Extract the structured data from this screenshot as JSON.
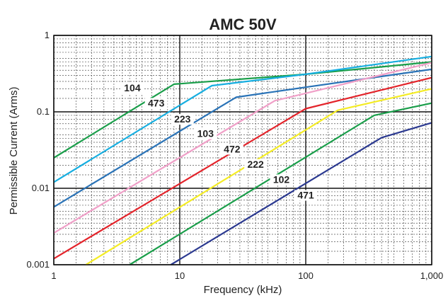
{
  "chart_data": {
    "type": "line",
    "title": "AMC 50V",
    "xlabel": "Frequency (kHz)",
    "ylabel": "Permissible Current (Arms)",
    "xscale": "log",
    "yscale": "log",
    "xlim": [
      1,
      1000
    ],
    "ylim": [
      0.001,
      1
    ],
    "grid": true,
    "x_tick_labels": [
      "1",
      "10",
      "100",
      "1,000"
    ],
    "y_tick_labels": [
      "0.001",
      "0.01",
      "0.1",
      "1"
    ],
    "x_ticks": [
      1,
      10,
      100,
      1000
    ],
    "y_ticks": [
      0.001,
      0.01,
      0.1,
      1
    ],
    "series": [
      {
        "name": "104",
        "color": "#1a9e4a",
        "points": [
          [
            1,
            0.025
          ],
          [
            9,
            0.23
          ],
          [
            100,
            0.31
          ],
          [
            1000,
            0.45
          ]
        ]
      },
      {
        "name": "473",
        "color": "#16aee0",
        "points": [
          [
            1,
            0.012
          ],
          [
            18,
            0.22
          ],
          [
            100,
            0.31
          ],
          [
            1000,
            0.53
          ]
        ]
      },
      {
        "name": "223",
        "color": "#2a73b7",
        "points": [
          [
            1,
            0.0057
          ],
          [
            28,
            0.155
          ],
          [
            100,
            0.21
          ],
          [
            1000,
            0.36
          ]
        ]
      },
      {
        "name": "103",
        "color": "#f0a0c8",
        "points": [
          [
            1,
            0.0026
          ],
          [
            57,
            0.14
          ],
          [
            100,
            0.175
          ],
          [
            1000,
            0.44
          ]
        ]
      },
      {
        "name": "472",
        "color": "#e3242b",
        "points": [
          [
            1,
            0.0012
          ],
          [
            100,
            0.11
          ],
          [
            1000,
            0.28
          ]
        ]
      },
      {
        "name": "222",
        "color": "#f4ec26",
        "points": [
          [
            1.8,
            0.001
          ],
          [
            180,
            0.105
          ],
          [
            1000,
            0.2
          ]
        ]
      },
      {
        "name": "102",
        "color": "#1a9e4a",
        "points": [
          [
            4,
            0.001
          ],
          [
            350,
            0.09
          ],
          [
            1000,
            0.13
          ]
        ]
      },
      {
        "name": "471",
        "color": "#2b3990",
        "points": [
          [
            8.5,
            0.001
          ],
          [
            400,
            0.046
          ],
          [
            1000,
            0.072
          ]
        ]
      }
    ],
    "annotations": [
      {
        "text": "104",
        "x": 4.2,
        "y": 0.19
      },
      {
        "text": "473",
        "x": 6.5,
        "y": 0.12
      },
      {
        "text": "223",
        "x": 10.5,
        "y": 0.074
      },
      {
        "text": "103",
        "x": 16,
        "y": 0.048
      },
      {
        "text": "472",
        "x": 26,
        "y": 0.03
      },
      {
        "text": "222",
        "x": 40,
        "y": 0.019
      },
      {
        "text": "102",
        "x": 64,
        "y": 0.012
      },
      {
        "text": "471",
        "x": 100,
        "y": 0.0075
      }
    ]
  }
}
